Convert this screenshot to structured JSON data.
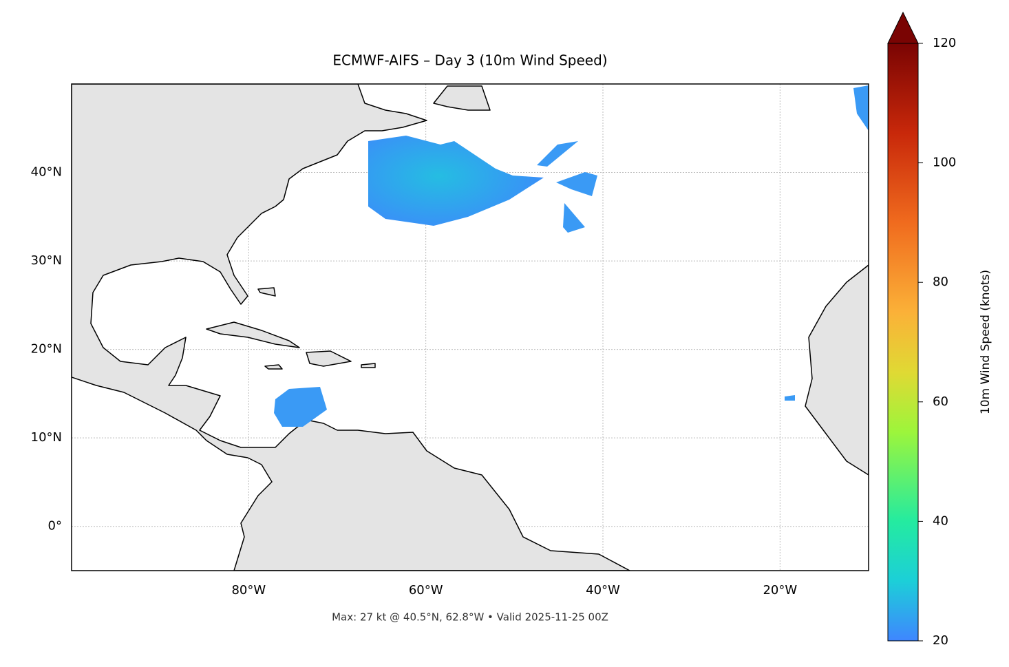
{
  "title": "ECMWF-AIFS – Day 3 (10m Wind Speed)",
  "footer": "Max: 27 kt @ 40.5°N, 62.8°W • Valid 2025-11-25 00Z",
  "map": {
    "xlim": [
      -100,
      -10
    ],
    "ylim": [
      -5,
      50
    ],
    "grid": true,
    "xticks": [
      {
        "value": -80,
        "label": "80°W"
      },
      {
        "value": -60,
        "label": "60°W"
      },
      {
        "value": -40,
        "label": "40°W"
      },
      {
        "value": -20,
        "label": "20°W"
      }
    ],
    "yticks": [
      {
        "value": 0,
        "label": "0°"
      },
      {
        "value": 10,
        "label": "10°N"
      },
      {
        "value": 20,
        "label": "20°N"
      },
      {
        "value": 30,
        "label": "30°N"
      },
      {
        "value": 40,
        "label": "40°N"
      }
    ]
  },
  "colorbar": {
    "label": "10m Wind Speed (knots)",
    "lim": [
      20,
      120
    ],
    "ticks": [
      20,
      40,
      60,
      80,
      100,
      120
    ]
  }
}
